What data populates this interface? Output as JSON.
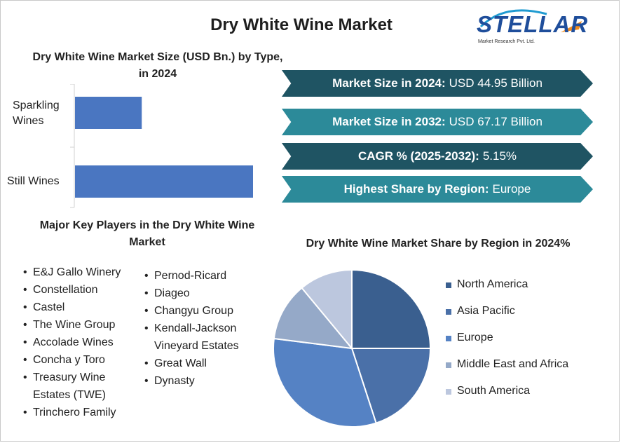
{
  "title": "Dry White Wine Market",
  "logo": {
    "name": "STELLAR",
    "tagline": "Market Research Pvt. Ltd."
  },
  "colors": {
    "dark_teal": "#1f5463",
    "light_teal": "#2c8a99",
    "bar": "#4a76c1"
  },
  "bar_chart_title": "Dry White Wine Market Size (USD Bn.) by Type, in 2024",
  "banners": [
    {
      "label": "Market Size in 2024:",
      "value": "USD 44.95 Billion"
    },
    {
      "label": "Market Size in 2032:",
      "value": "USD 67.17 Billion"
    },
    {
      "label": "CAGR % (2025-2032):",
      "value": "5.15%"
    },
    {
      "label": "Highest Share by Region:",
      "value": "Europe"
    }
  ],
  "players_title": "Major Key Players in the Dry White Wine Market",
  "players_col1": [
    "E&J Gallo Winery",
    "Constellation",
    "Castel",
    "The Wine Group",
    "Accolade Wines",
    "Concha y Toro",
    "Treasury Wine Estates (TWE)",
    "Trinchero Family"
  ],
  "players_col2": [
    "Pernod-Ricard",
    "Diageo",
    "Changyu Group",
    "Kendall-Jackson Vineyard Estates",
    "Great Wall",
    "Dynasty"
  ],
  "pie_title": "Dry White Wine Market Share by Region in 2024%",
  "chart_data": [
    {
      "type": "bar",
      "orientation": "horizontal",
      "title": "Dry White Wine Market Size (USD Bn.) by Type, in 2024",
      "categories": [
        "Sparkling Wines",
        "Still Wines"
      ],
      "values": [
        12,
        32
      ],
      "xlim": [
        0,
        32
      ],
      "grid": false,
      "bar_color": "#4a76c1"
    },
    {
      "type": "pie",
      "title": "Dry White Wine Market Share by Region in 2024%",
      "labels": [
        "North America",
        "Asia Pacific",
        "Europe",
        "Middle East and Africa",
        "South America"
      ],
      "values": [
        25,
        20,
        32,
        12,
        11
      ],
      "colors": [
        "#3a5f8f",
        "#4a70a8",
        "#5582c4",
        "#95a9c8",
        "#bcc7de"
      ],
      "legend": "right"
    }
  ]
}
